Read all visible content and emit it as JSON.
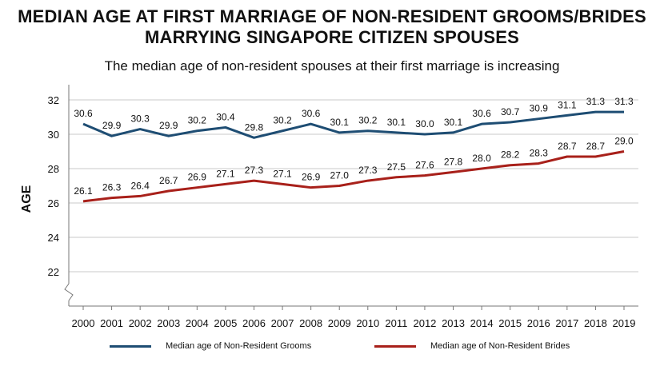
{
  "title_line1": "MEDIAN AGE AT FIRST MARRIAGE OF NON-RESIDENT GROOMS/BRIDES",
  "title_line2": "MARRYING SINGAPORE CITIZEN SPOUSES",
  "subtitle": "The median age of non-resident spouses at their first marriage is increasing",
  "chart_data": {
    "type": "line",
    "title": "MEDIAN AGE AT FIRST MARRIAGE OF NON-RESIDENT GROOMS/BRIDES MARRYING SINGAPORE CITIZEN SPOUSES",
    "subtitle": "The median age of non-resident spouses at their first marriage is increasing",
    "xlabel": "",
    "ylabel": "AGE",
    "x": [
      "2000",
      "2001",
      "2002",
      "2003",
      "2004",
      "2005",
      "2006",
      "2007",
      "2008",
      "2009",
      "2010",
      "2011",
      "2012",
      "2013",
      "2014",
      "2015",
      "2016",
      "2017",
      "2018",
      "2019"
    ],
    "yticks": [
      22,
      24,
      26,
      28,
      30,
      32
    ],
    "ylim": [
      20,
      32.7
    ],
    "axis_break": true,
    "grid": "horizontal",
    "legend_position": "bottom",
    "series": [
      {
        "name": "Median age of Non-Resident Grooms",
        "color": "#1e4d73",
        "values": [
          30.6,
          29.9,
          30.3,
          29.9,
          30.2,
          30.4,
          29.8,
          30.2,
          30.6,
          30.1,
          30.2,
          30.1,
          30.0,
          30.1,
          30.6,
          30.7,
          30.9,
          31.1,
          31.3,
          31.3
        ],
        "labels": [
          "30.6",
          "29.9",
          "30.3",
          "29.9",
          "30.2",
          "30.4",
          "29.8",
          "30.2",
          "30.6",
          "30.1",
          "30.2",
          "30.1",
          "30.0",
          "30.1",
          "30.6",
          "30.7",
          "30.9",
          "31.1",
          "31.3",
          "31.3"
        ]
      },
      {
        "name": "Median age of Non-Resident Brides",
        "color": "#a8201a",
        "values": [
          26.1,
          26.3,
          26.4,
          26.7,
          26.9,
          27.1,
          27.3,
          27.1,
          26.9,
          27.0,
          27.3,
          27.5,
          27.6,
          27.8,
          28.0,
          28.2,
          28.3,
          28.7,
          28.7,
          29.0
        ],
        "labels": [
          "26.1",
          "26.3",
          "26.4",
          "26.7",
          "26.9",
          "27.1",
          "27.3",
          "27.1",
          "26.9",
          "27.0",
          "27.3",
          "27.5",
          "27.6",
          "27.8",
          "28.0",
          "28.2",
          "28.3",
          "28.7",
          "28.7",
          "29.0"
        ]
      }
    ]
  }
}
